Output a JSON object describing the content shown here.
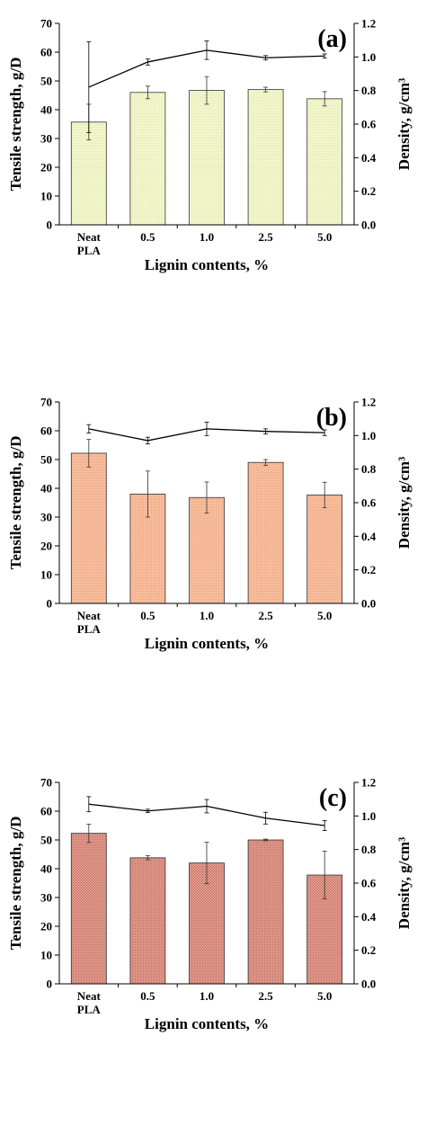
{
  "figure": {
    "shared_x_categories": [
      "Neat PLA",
      "0.5",
      "1.0",
      "2.5",
      "5.0"
    ],
    "bar_colors": [
      "#eef5c0",
      "#f7b896",
      "#d98a7b"
    ],
    "bar_stroke": "#333333",
    "line_color": "#000000"
  },
  "chart_data": [
    {
      "type": "bar",
      "panel_label": "(a)",
      "categories": [
        "Neat PLA",
        "0.5",
        "1.0",
        "2.5",
        "5.0"
      ],
      "category_lines": [
        [
          "Neat",
          "PLA"
        ],
        [
          "0.5"
        ],
        [
          "1.0"
        ],
        [
          "2.5"
        ],
        [
          "5.0"
        ]
      ],
      "xlabel": "Lignin contents, %",
      "ylabel": "Tensile strength, g/D",
      "y2label": "Density, g/cm³",
      "ylim": [
        0,
        70
      ],
      "yticks": [
        0,
        10,
        20,
        30,
        40,
        50,
        60,
        70
      ],
      "y2lim": [
        0,
        1.2
      ],
      "y2ticks": [
        "0.0",
        "0.2",
        "0.4",
        "0.6",
        "0.8",
        "1.0",
        "1.2"
      ],
      "grid": false,
      "series": [
        {
          "kind": "bar",
          "axis": "left",
          "values": [
            35.7,
            46.0,
            46.7,
            47.0,
            43.8
          ],
          "errors": [
            6.2,
            2.2,
            4.8,
            0.8,
            2.5
          ]
        },
        {
          "kind": "line",
          "axis": "right",
          "values": [
            0.82,
            0.97,
            1.04,
            0.995,
            1.006
          ],
          "errors": [
            0.27,
            0.018,
            0.055,
            0.013,
            0.012
          ]
        }
      ]
    },
    {
      "type": "bar",
      "panel_label": "(b)",
      "categories": [
        "Neat PLA",
        "0.5",
        "1.0",
        "2.5",
        "5.0"
      ],
      "category_lines": [
        [
          "Neat",
          "PLA"
        ],
        [
          "0.5"
        ],
        [
          "1.0"
        ],
        [
          "2.5"
        ],
        [
          "5.0"
        ]
      ],
      "xlabel": "Lignin contents, %",
      "ylabel": "Tensile strength, g/D",
      "y2label": "Density, g/cm³",
      "ylim": [
        0,
        70
      ],
      "yticks": [
        0,
        10,
        20,
        30,
        40,
        50,
        60,
        70
      ],
      "y2lim": [
        0,
        1.2
      ],
      "y2ticks": [
        "0.0",
        "0.2",
        "0.4",
        "0.6",
        "0.8",
        "1.0",
        "1.2"
      ],
      "grid": false,
      "series": [
        {
          "kind": "bar",
          "axis": "left",
          "values": [
            52.2,
            38.0,
            36.8,
            49.0,
            37.7
          ],
          "errors": [
            4.8,
            8.0,
            5.4,
            1.0,
            4.4
          ]
        },
        {
          "kind": "line",
          "axis": "right",
          "values": [
            1.04,
            0.97,
            1.04,
            1.025,
            1.017
          ],
          "errors": [
            0.025,
            0.02,
            0.04,
            0.015,
            0.017
          ]
        }
      ]
    },
    {
      "type": "bar",
      "panel_label": "(c)",
      "categories": [
        "Neat PLA",
        "0.5",
        "1.0",
        "2.5",
        "5.0"
      ],
      "category_lines": [
        [
          "Neat",
          "PLA"
        ],
        [
          "0.5"
        ],
        [
          "1.0"
        ],
        [
          "2.5"
        ],
        [
          "5.0"
        ]
      ],
      "xlabel": "Lignin contents, %",
      "ylabel": "Tensile strength, g/D",
      "y2label": "Density, g/cm³",
      "ylim": [
        0,
        70
      ],
      "yticks": [
        0,
        10,
        20,
        30,
        40,
        50,
        60,
        70
      ],
      "y2lim": [
        0,
        1.2
      ],
      "y2ticks": [
        "0.0",
        "0.2",
        "0.4",
        "0.6",
        "0.8",
        "1.0",
        "1.2"
      ],
      "grid": false,
      "series": [
        {
          "kind": "bar",
          "axis": "left",
          "values": [
            52.3,
            43.8,
            42.0,
            50.0,
            37.8
          ],
          "errors": [
            3.2,
            0.7,
            7.2,
            0.3,
            8.3
          ]
        },
        {
          "kind": "line",
          "axis": "right",
          "values": [
            1.07,
            1.03,
            1.058,
            0.987,
            0.943
          ],
          "errors": [
            0.045,
            0.01,
            0.04,
            0.035,
            0.03
          ]
        }
      ]
    }
  ]
}
